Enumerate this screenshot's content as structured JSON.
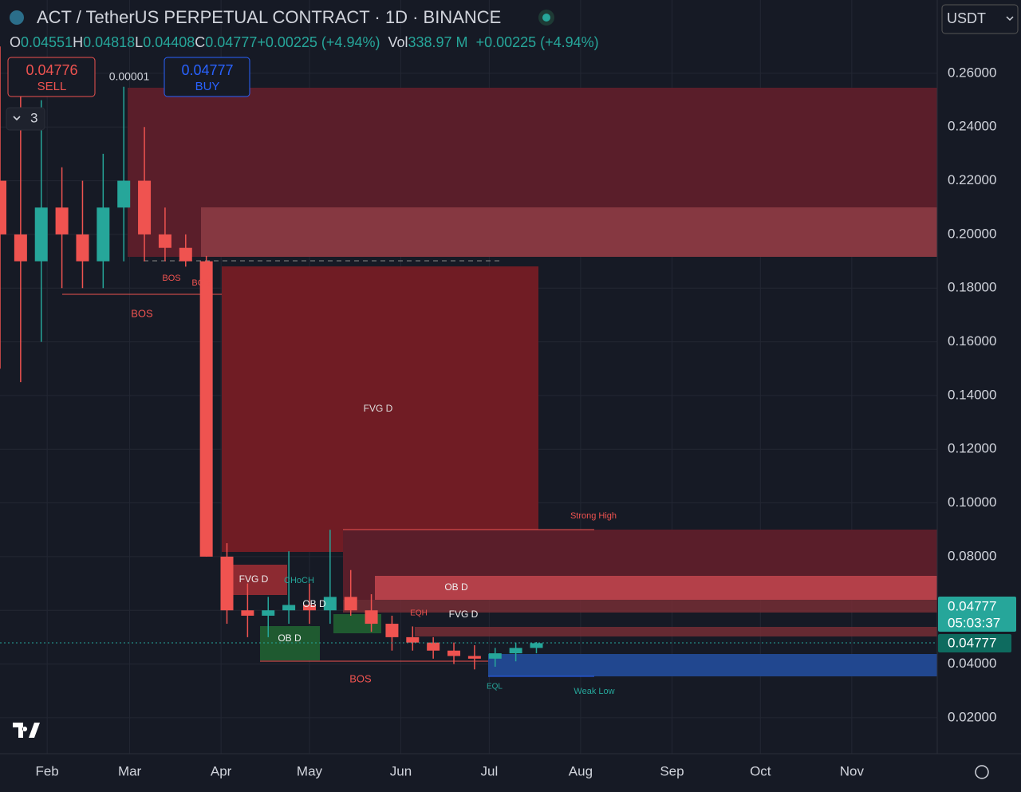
{
  "header": {
    "title": "ACT / TetherUS PERPETUAL CONTRACT · 1D · BINANCE",
    "ohlc": [
      {
        "key": "O",
        "value": "0.04551"
      },
      {
        "key": "H",
        "value": "0.04818"
      },
      {
        "key": "L",
        "value": "0.04408"
      },
      {
        "key": "C",
        "value": "0.04777"
      }
    ],
    "change": "+0.00225 (+4.94%)",
    "volume_label": "Vol",
    "volume": "338.97 M",
    "volume_change": "+0.00225 (+4.94%)",
    "currency": "USDT"
  },
  "order_panel": {
    "sell_price": "0.04776",
    "sell_label": "SELL",
    "spread": "0.00001",
    "buy_price": "0.04777",
    "buy_label": "BUY",
    "indicators": "3"
  },
  "price_tags": {
    "last": "0.04777",
    "countdown": "05:03:37",
    "crosshair": "0.04777"
  },
  "annotations": {
    "bos_1": "BOS",
    "bos_2": "BOS",
    "bos_3": "BOS",
    "bos_4": "BOS",
    "fvg_big": "FVG D",
    "fvg_small": "FVG D",
    "ob_1": "OB D",
    "ob_2": "OB D",
    "ob_3": "OB D",
    "fvg_3": "FVG D",
    "choch": "CHoCH",
    "eqh": "EQH",
    "eql": "EQL",
    "strong_high": "Strong High",
    "weak_low": "Weak Low"
  },
  "chart_data": {
    "type": "candlestick",
    "x": [
      15,
      22,
      29,
      36,
      43,
      50,
      57,
      64,
      71,
      78,
      85,
      92,
      99,
      106,
      113,
      120,
      127,
      134,
      141,
      148,
      155,
      162,
      169,
      176,
      183,
      190,
      197
    ],
    "open": [
      0.22,
      0.2,
      0.19,
      0.21,
      0.2,
      0.19,
      0.21,
      0.22,
      0.2,
      0.195,
      0.19,
      0.08,
      0.06,
      0.058,
      0.06,
      0.062,
      0.06,
      0.065,
      0.06,
      0.055,
      0.05,
      0.048,
      0.045,
      0.043,
      0.042,
      0.044,
      0.046
    ],
    "high": [
      0.27,
      0.26,
      0.25,
      0.225,
      0.22,
      0.23,
      0.255,
      0.24,
      0.21,
      0.2,
      0.192,
      0.085,
      0.07,
      0.065,
      0.082,
      0.07,
      0.09,
      0.075,
      0.066,
      0.058,
      0.054,
      0.05,
      0.048,
      0.047,
      0.046,
      0.048,
      0.0482
    ],
    "low": [
      0.15,
      0.145,
      0.16,
      0.18,
      0.18,
      0.18,
      0.19,
      0.19,
      0.19,
      0.188,
      0.08,
      0.055,
      0.05,
      0.05,
      0.055,
      0.055,
      0.055,
      0.058,
      0.052,
      0.045,
      0.045,
      0.042,
      0.04,
      0.038,
      0.039,
      0.041,
      0.044
    ],
    "close": [
      0.2,
      0.19,
      0.21,
      0.2,
      0.19,
      0.21,
      0.22,
      0.2,
      0.195,
      0.19,
      0.08,
      0.06,
      0.058,
      0.06,
      0.062,
      0.06,
      0.065,
      0.06,
      0.055,
      0.05,
      0.048,
      0.045,
      0.043,
      0.042,
      0.044,
      0.046,
      0.04777
    ],
    "up_color": "#26a69a",
    "down_color": "#ef5350",
    "xlim": [
      15,
      333
    ],
    "xticks": [
      {
        "value": 31,
        "label": "Feb"
      },
      {
        "value": 59,
        "label": "Mar"
      },
      {
        "value": 90,
        "label": "Apr"
      },
      {
        "value": 120,
        "label": "May"
      },
      {
        "value": 151,
        "label": "Jun"
      },
      {
        "value": 181,
        "label": "Jul"
      },
      {
        "value": 212,
        "label": "Aug"
      },
      {
        "value": 243,
        "label": "Sep"
      },
      {
        "value": 273,
        "label": "Oct"
      },
      {
        "value": 304,
        "label": "Nov"
      }
    ],
    "ylim": [
      0.0066,
      0.2873
    ],
    "yticks": [
      {
        "value": 0.02,
        "label": "0.02000"
      },
      {
        "value": 0.04,
        "label": "0.04000"
      },
      {
        "value": 0.06,
        "label": "0.06000"
      },
      {
        "value": 0.08,
        "label": "0.08000"
      },
      {
        "value": 0.1,
        "label": "0.10000"
      },
      {
        "value": 0.12,
        "label": "0.12000"
      },
      {
        "value": 0.14,
        "label": "0.14000"
      },
      {
        "value": 0.16,
        "label": "0.16000"
      },
      {
        "value": 0.18,
        "label": "0.18000"
      },
      {
        "value": 0.2,
        "label": "0.20000"
      },
      {
        "value": 0.22,
        "label": "0.22000"
      },
      {
        "value": 0.24,
        "label": "0.24000"
      },
      {
        "value": 0.26,
        "label": "0.26000"
      }
    ],
    "grid": true
  }
}
